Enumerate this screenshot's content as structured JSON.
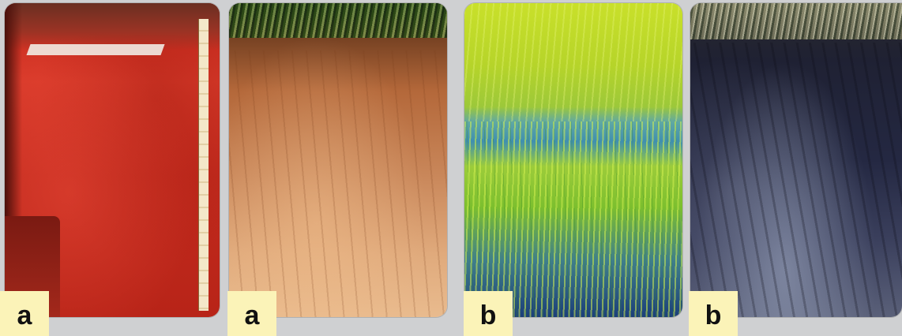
{
  "panels": [
    {
      "label": "a",
      "subject": "red-soil-profile-photo"
    },
    {
      "label": "a",
      "subject": "brown-soil-profile-photo"
    },
    {
      "label": "b",
      "subject": "rice-field-photo"
    },
    {
      "label": "b",
      "subject": "dark-soil-profile-photo"
    }
  ],
  "colors": {
    "background": "#cfd0d2",
    "label_box": "#fbf3b8",
    "label_text": "#111111"
  }
}
